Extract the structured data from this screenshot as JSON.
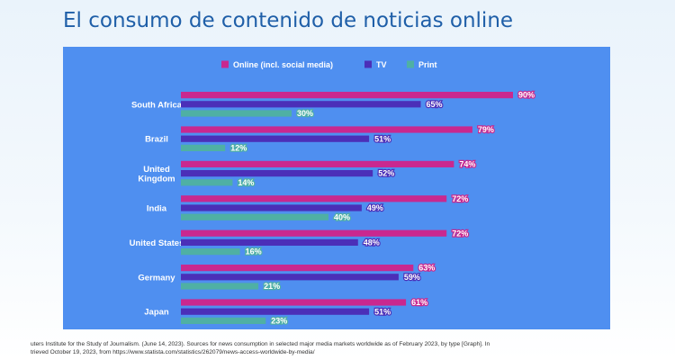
{
  "title": "El consumo de contenido de noticias online",
  "source": {
    "line1": "uters Institute for the Study of Journalism. (June 14, 2023). Sources for news consumption in selected major media markets worldwide as of February 2023, by type [Graph]. In",
    "line2": "trieved October 19, 2023, from https://www.statista.com/statistics/262079/news-access-worldwide-by-media/"
  },
  "chart_data": {
    "type": "bar",
    "orientation": "horizontal",
    "legend_position": "top",
    "grid": false,
    "xlim": [
      0,
      100
    ],
    "categories": [
      "South Africa",
      "Brazil",
      "United Kingdom",
      "India",
      "United States",
      "Germany",
      "Japan"
    ],
    "category_lines": [
      [
        "South Africa"
      ],
      [
        "Brazil"
      ],
      [
        "United",
        "Kingdom"
      ],
      [
        "India"
      ],
      [
        "United States"
      ],
      [
        "Germany"
      ],
      [
        "Japan"
      ]
    ],
    "series": [
      {
        "name": "Online (incl. social media)",
        "color": "#c9288f",
        "values": [
          90,
          79,
          74,
          72,
          72,
          63,
          61
        ]
      },
      {
        "name": "TV",
        "color": "#4b2fb8",
        "values": [
          65,
          51,
          52,
          49,
          48,
          59,
          51
        ]
      },
      {
        "name": "Print",
        "color": "#4fb0a4",
        "values": [
          30,
          12,
          14,
          40,
          16,
          21,
          23
        ]
      }
    ],
    "value_suffix": "%"
  }
}
